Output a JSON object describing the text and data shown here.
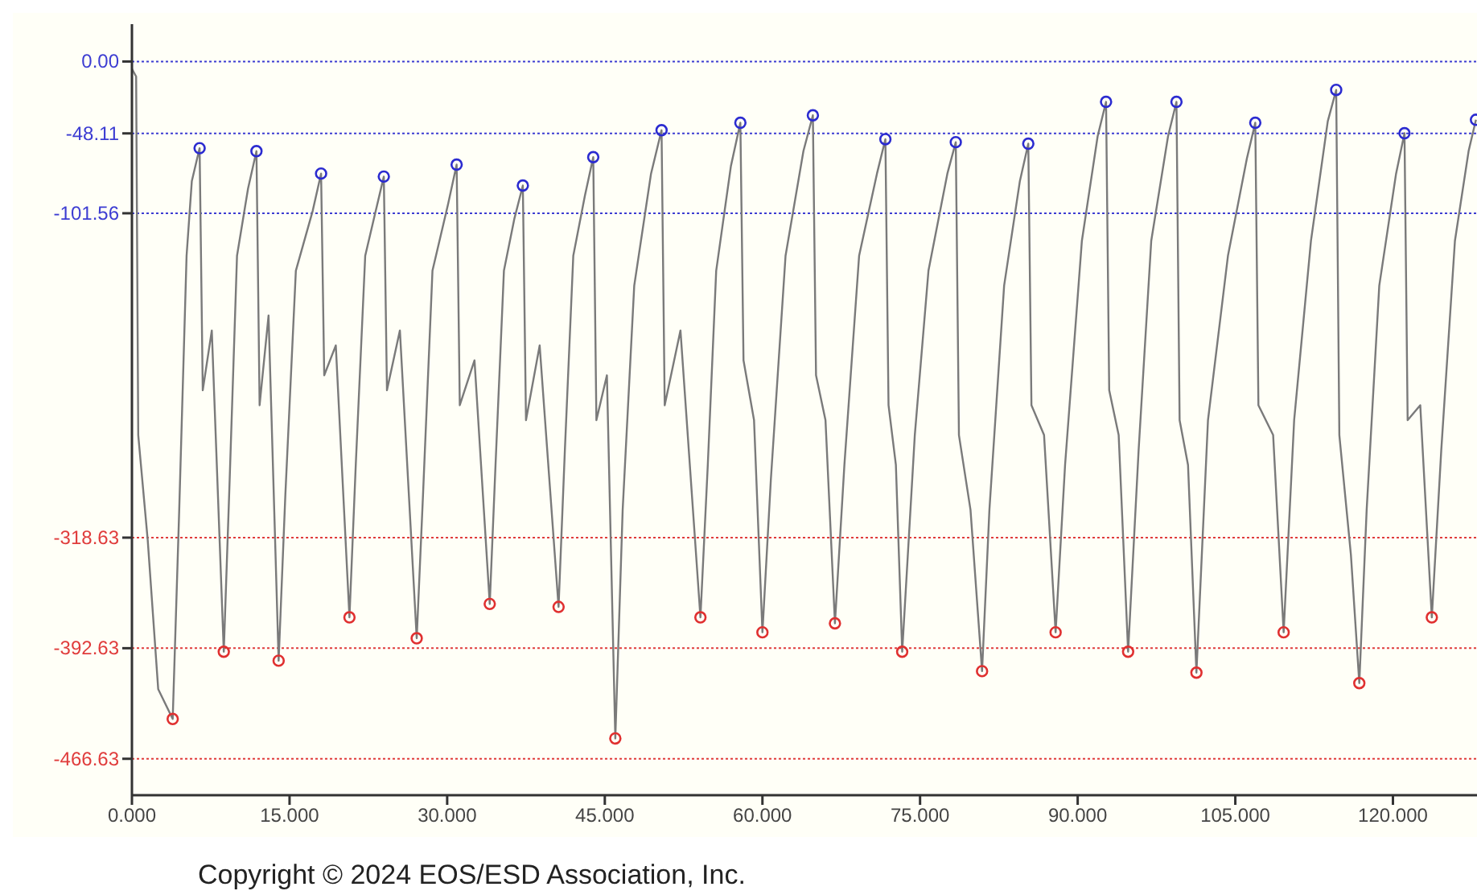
{
  "chart_data": {
    "type": "line",
    "annotations": [
      "Copyright © 2024 EOS/ESD Association, Inc."
    ],
    "xlim": [
      0,
      128
    ],
    "xticks": [
      {
        "value": 0,
        "label": "0.000"
      },
      {
        "value": 15,
        "label": "15.000"
      },
      {
        "value": 30,
        "label": "30.000"
      },
      {
        "value": 45,
        "label": "45.000"
      },
      {
        "value": 60,
        "label": "60.000"
      },
      {
        "value": 75,
        "label": "75.000"
      },
      {
        "value": 90,
        "label": "90.000"
      },
      {
        "value": 105,
        "label": "105.000"
      },
      {
        "value": 120,
        "label": "120.000"
      }
    ],
    "ylim": [
      -491,
      25
    ],
    "yticks": [
      {
        "value": 0,
        "label": "0.00"
      },
      {
        "value": -48.11,
        "label": "-48.11"
      },
      {
        "value": -101.56,
        "label": "-101.56"
      },
      {
        "value": -318.63,
        "label": "-318.63"
      },
      {
        "value": -392.63,
        "label": "-392.63"
      },
      {
        "value": -466.63,
        "label": "-466.63"
      }
    ],
    "grid": false,
    "ref_lines": [
      {
        "axis": "y",
        "value": 0,
        "color": "#3c3cd2",
        "line_style": "dotted"
      },
      {
        "axis": "y",
        "value": -48.11,
        "color": "#3c3cd2",
        "line_style": "dotted"
      },
      {
        "axis": "y",
        "value": -101.56,
        "color": "#3c3cd2",
        "line_style": "dotted"
      },
      {
        "axis": "y",
        "value": -318.63,
        "color": "#e03c3c",
        "line_style": "dotted"
      },
      {
        "axis": "y",
        "value": -392.63,
        "color": "#e03c3c",
        "line_style": "dotted"
      },
      {
        "axis": "y",
        "value": -466.63,
        "color": "#e03c3c",
        "line_style": "dotted"
      }
    ],
    "series": [
      {
        "color": "#7a7a7a",
        "marker": "none",
        "line_style": "solid",
        "x": [
          0,
          0.4,
          0.6,
          1.5,
          2.5,
          3.88,
          4.5,
          5.2,
          5.7,
          6.44,
          6.74,
          7.6,
          8.74,
          9.3,
          10.0,
          11.05,
          11.85,
          12.15,
          13.0,
          13.96,
          14.6,
          15.6,
          17.2,
          18.0,
          18.3,
          19.4,
          20.7,
          21.3,
          22.2,
          23.2,
          23.97,
          24.27,
          25.5,
          27.1,
          27.7,
          28.6,
          30.1,
          30.9,
          31.2,
          32.6,
          34.05,
          34.6,
          35.4,
          36.4,
          37.2,
          37.5,
          38.8,
          40.6,
          41.2,
          42.0,
          43.1,
          43.9,
          44.2,
          45.2,
          46.0,
          46.7,
          47.8,
          49.4,
          50.4,
          50.7,
          52.2,
          54.1,
          54.8,
          55.6,
          57.0,
          57.9,
          58.2,
          59.2,
          60.0,
          60.8,
          62.2,
          63.9,
          64.8,
          65.1,
          66.0,
          66.9,
          67.8,
          69.2,
          70.9,
          71.7,
          72.0,
          72.7,
          73.3,
          74.5,
          75.8,
          77.6,
          78.4,
          78.7,
          79.8,
          80.9,
          81.6,
          83.0,
          84.5,
          85.3,
          85.6,
          86.8,
          87.9,
          88.8,
          90.4,
          91.9,
          92.7,
          93.0,
          93.9,
          94.8,
          95.8,
          97.0,
          98.6,
          99.4,
          99.7,
          100.5,
          101.3,
          102.4,
          104.3,
          106.1,
          106.9,
          107.2,
          108.6,
          109.6,
          110.6,
          112.2,
          113.8,
          114.6,
          114.9,
          116.0,
          116.8,
          117.5,
          118.7,
          120.3,
          121.1,
          121.4,
          122.6,
          123.7,
          124.6,
          125.9,
          127.2,
          127.9
        ],
        "values": [
          -5,
          -10,
          -250,
          -320,
          -420,
          -440,
          -300,
          -130,
          -80,
          -58,
          -220,
          -180,
          -395,
          -280,
          -130,
          -85,
          -60,
          -230,
          -170,
          -401,
          -290,
          -140,
          -100,
          -75,
          -210,
          -190,
          -372,
          -270,
          -130,
          -100,
          -77,
          -220,
          -180,
          -386,
          -290,
          -140,
          -95,
          -69,
          -230,
          -200,
          -363,
          -270,
          -140,
          -105,
          -83,
          -240,
          -190,
          -365,
          -260,
          -130,
          -90,
          -64,
          -240,
          -210,
          -453,
          -300,
          -150,
          -75,
          -46,
          -230,
          -180,
          -372,
          -270,
          -140,
          -70,
          -41,
          -200,
          -240,
          -382,
          -280,
          -130,
          -60,
          -36,
          -210,
          -240,
          -376,
          -270,
          -130,
          -75,
          -52,
          -230,
          -270,
          -395,
          -250,
          -140,
          -75,
          -54,
          -250,
          -300,
          -408,
          -300,
          -150,
          -80,
          -55,
          -230,
          -250,
          -382,
          -270,
          -120,
          -50,
          -27,
          -220,
          -250,
          -395,
          -260,
          -120,
          -50,
          -27,
          -240,
          -270,
          -409,
          -240,
          -130,
          -65,
          -41,
          -230,
          -250,
          -382,
          -240,
          -120,
          -40,
          -19,
          -250,
          -330,
          -416,
          -300,
          -150,
          -75,
          -48,
          -240,
          -230,
          -372,
          -260,
          -120,
          -60,
          -39
        ]
      },
      {
        "type": "scatter",
        "color": "#2b2bd0",
        "marker": "circle",
        "x": [
          6.44,
          11.85,
          18.0,
          23.97,
          30.9,
          37.2,
          43.9,
          50.4,
          57.9,
          64.8,
          71.7,
          78.4,
          85.3,
          92.7,
          99.4,
          106.9,
          114.6,
          121.1,
          127.9
        ],
        "values": [
          -58,
          -60,
          -75,
          -77,
          -69,
          -83,
          -64,
          -46,
          -41,
          -36,
          -52,
          -54,
          -55,
          -27,
          -27,
          -41,
          -19,
          -48,
          -39
        ]
      },
      {
        "type": "scatter",
        "color": "#e03030",
        "marker": "circle",
        "x": [
          3.88,
          8.74,
          13.96,
          20.7,
          27.1,
          34.05,
          40.6,
          46.0,
          54.1,
          60.0,
          66.9,
          73.3,
          80.9,
          87.9,
          94.8,
          101.3,
          109.6,
          116.8,
          123.7
        ],
        "values": [
          -440,
          -395,
          -401,
          -372,
          -386,
          -363,
          -365,
          -453,
          -372,
          -382,
          -376,
          -395,
          -408,
          -382,
          -395,
          -409,
          -382,
          -416,
          -372
        ]
      }
    ]
  }
}
